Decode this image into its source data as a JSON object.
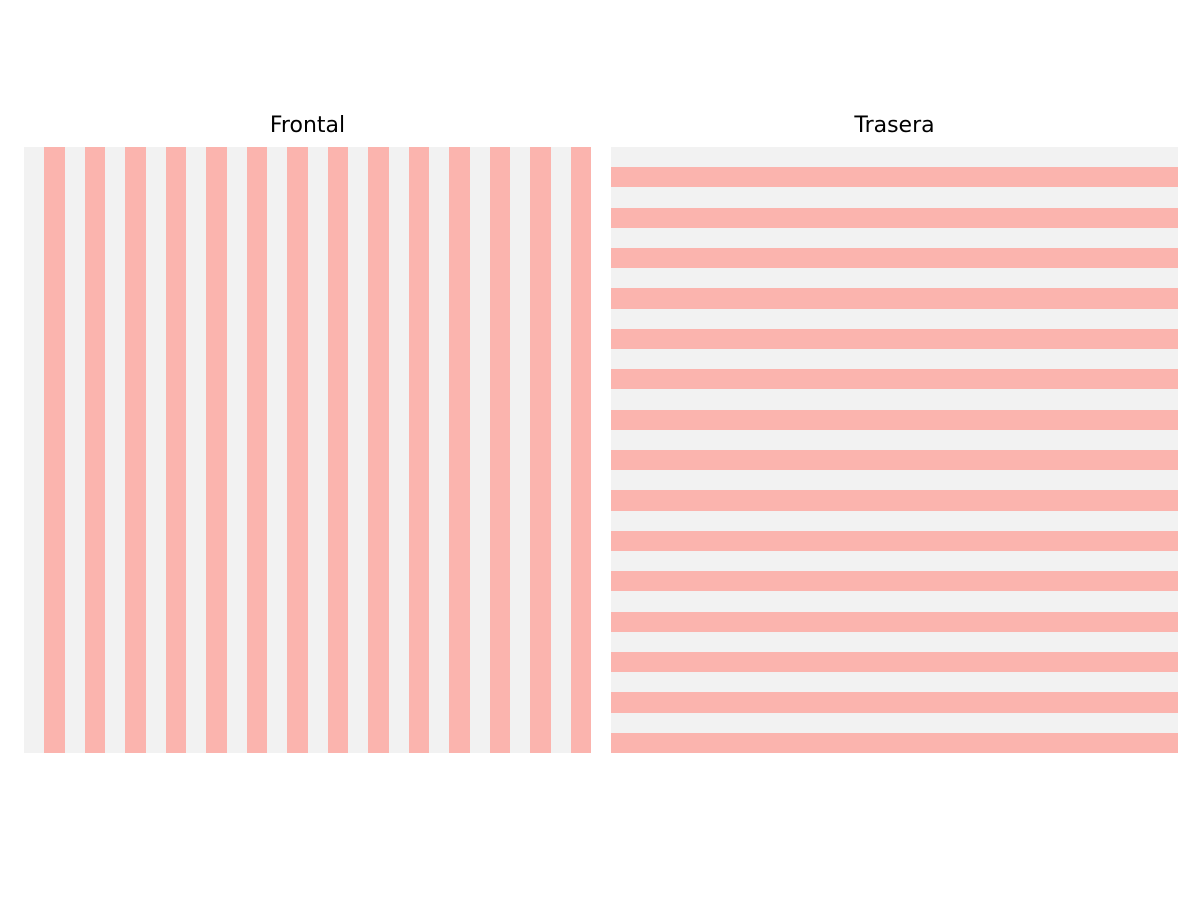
{
  "colors": {
    "light": "#f2f2f2",
    "accent": "#fbb4ae"
  },
  "panels": [
    {
      "title": "Frontal",
      "orientation": "vertical",
      "pattern": [
        "light",
        "accent",
        "light",
        "accent",
        "light",
        "accent",
        "light",
        "accent",
        "light",
        "accent",
        "light",
        "accent",
        "light",
        "accent",
        "light",
        "accent",
        "light",
        "accent",
        "light",
        "accent",
        "light",
        "accent",
        "light",
        "accent",
        "light",
        "accent",
        "light",
        "accent"
      ]
    },
    {
      "title": "Trasera",
      "orientation": "horizontal",
      "pattern": [
        "light",
        "accent",
        "light",
        "accent",
        "light",
        "accent",
        "light",
        "accent",
        "light",
        "accent",
        "light",
        "accent",
        "light",
        "accent",
        "light",
        "accent",
        "light",
        "accent",
        "light",
        "accent",
        "light",
        "accent",
        "light",
        "accent",
        "light",
        "accent",
        "light",
        "accent",
        "light",
        "accent"
      ]
    }
  ]
}
